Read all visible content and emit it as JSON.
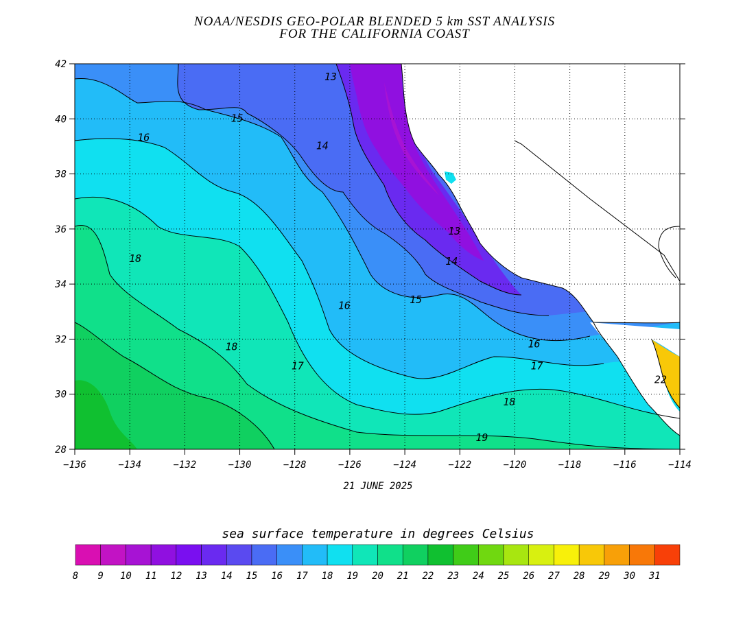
{
  "title": {
    "line1": "NOAA/NESDIS GEO-POLAR BLENDED 5 km SST ANALYSIS",
    "line2": "FOR THE CALIFORNIA COAST"
  },
  "date": "21 JUNE 2025",
  "axes": {
    "x_ticks": [
      "−136",
      "−134",
      "−132",
      "−130",
      "−128",
      "−126",
      "−124",
      "−122",
      "−120",
      "−118",
      "−116",
      "−114"
    ],
    "y_ticks": [
      "42",
      "40",
      "38",
      "36",
      "34",
      "32",
      "30",
      "28"
    ],
    "grid": true
  },
  "contour_labels": [
    {
      "text": "13",
      "lon": -126.7,
      "lat": 41.4
    },
    {
      "text": "15",
      "lon": -130.1,
      "lat": 39.9
    },
    {
      "text": "16",
      "lon": -133.5,
      "lat": 39.2
    },
    {
      "text": "14",
      "lon": -127.0,
      "lat": 38.9
    },
    {
      "text": "18",
      "lon": -133.8,
      "lat": 34.8
    },
    {
      "text": "13",
      "lon": -122.2,
      "lat": 35.8
    },
    {
      "text": "14",
      "lon": -122.3,
      "lat": 34.7
    },
    {
      "text": "15",
      "lon": -123.6,
      "lat": 33.3
    },
    {
      "text": "16",
      "lon": -126.2,
      "lat": 33.1
    },
    {
      "text": "16",
      "lon": -119.3,
      "lat": 31.7
    },
    {
      "text": "18",
      "lon": -130.3,
      "lat": 31.6
    },
    {
      "text": "17",
      "lon": -127.9,
      "lat": 30.9
    },
    {
      "text": "17",
      "lon": -119.2,
      "lat": 30.9
    },
    {
      "text": "18",
      "lon": -120.2,
      "lat": 29.6
    },
    {
      "text": "19",
      "lon": -121.2,
      "lat": 28.3
    },
    {
      "text": "22",
      "lon": -114.7,
      "lat": 30.4
    }
  ],
  "colorbar": {
    "title": "sea surface temperature in degrees Celsius",
    "labels": [
      "8",
      "9",
      "10",
      "11",
      "12",
      "13",
      "14",
      "15",
      "16",
      "17",
      "18",
      "19",
      "20",
      "21",
      "22",
      "23",
      "24",
      "25",
      "26",
      "27",
      "28",
      "29",
      "30",
      "31"
    ],
    "colors": [
      "#d90fb2",
      "#c213c4",
      "#a713d4",
      "#9010e0",
      "#7a0ff0",
      "#6a2af0",
      "#5a4af0",
      "#4a6cf4",
      "#3a8ff8",
      "#22bcf8",
      "#10e0f0",
      "#10e6b8",
      "#10e08a",
      "#10d060",
      "#10c030",
      "#40cc18",
      "#70d810",
      "#a8e610",
      "#d8f010",
      "#f8f00a",
      "#f8c808",
      "#f8a008",
      "#f87808",
      "#f84008"
    ]
  },
  "map_colors": {
    "t13": "#6a2af0",
    "t14": "#4a6cf4",
    "t15": "#3a8ff8",
    "t16": "#22bcf8",
    "t17": "#10e0f0",
    "t18": "#10e6b8",
    "t19": "#10e08a",
    "t20": "#10d060",
    "t21": "#10c030",
    "t11": "#9010e0",
    "t10": "#a713d4",
    "land": "#ffffff",
    "warm": "#f8c808"
  }
}
